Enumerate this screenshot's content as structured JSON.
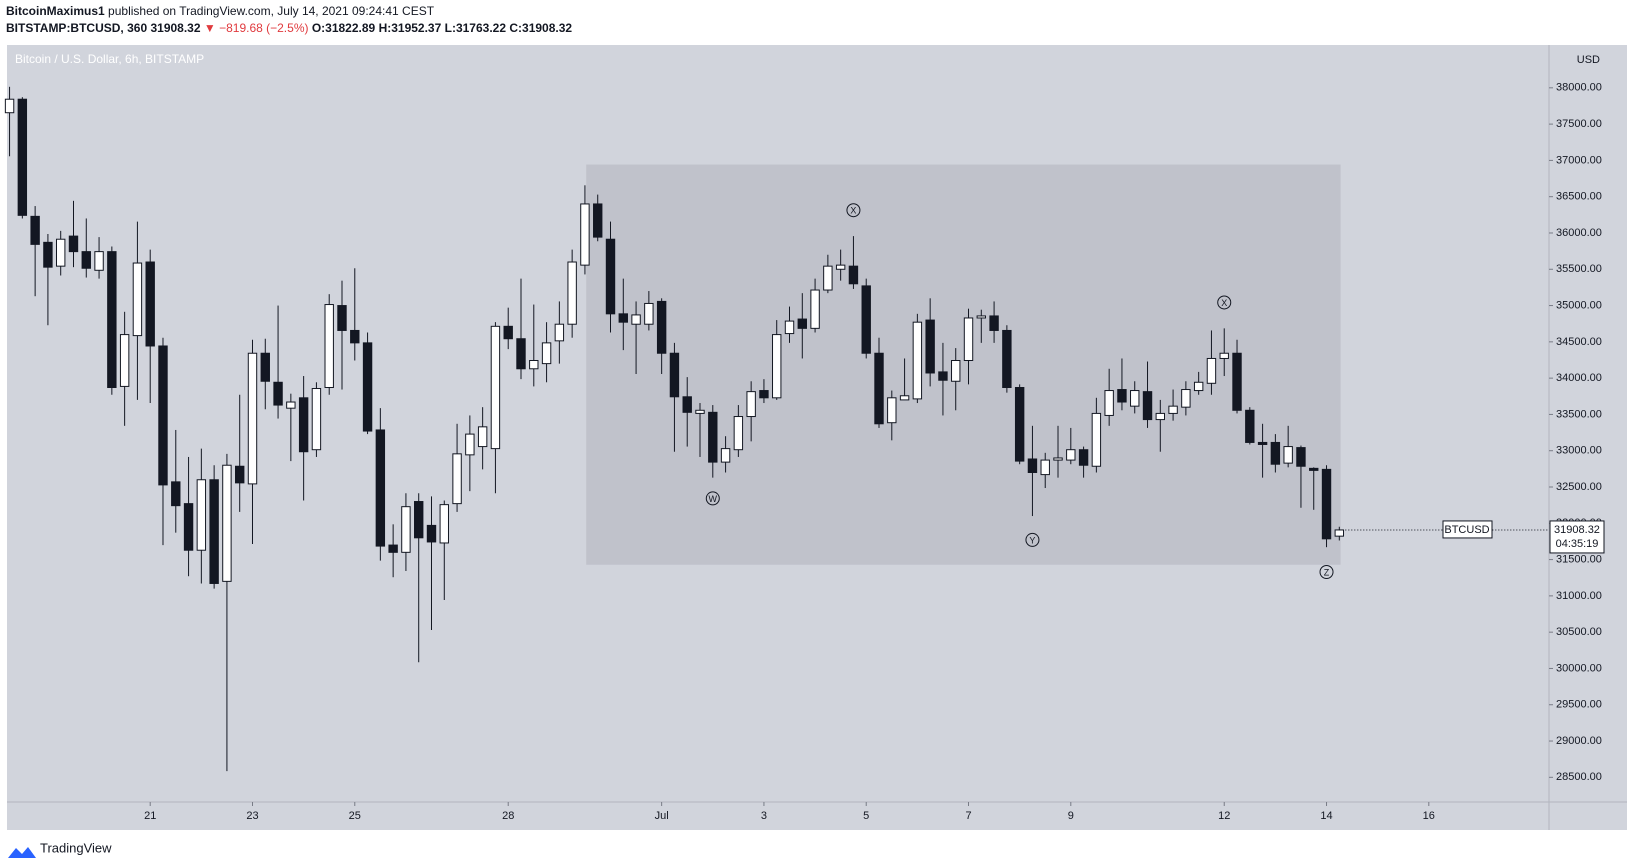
{
  "header": {
    "author": "BitcoinMaximus1",
    "published": "published on TradingView.com, July 14, 2021 09:24:41 CEST",
    "symbol": "BITSTAMP:BTCUSD, 360",
    "last": "31908.32",
    "change": "▼ −819.68 (−2.5%)",
    "o": "O:31822.89",
    "h": "H:31952.37",
    "l": "L:31763.22",
    "c": "C:31908.32"
  },
  "footer": {
    "brand": "TradingView"
  },
  "chart_data": {
    "type": "candlestick",
    "title": "Bitcoin / U.S. Dollar, 6h, BITSTAMP",
    "y_unit": "USD",
    "symbol": "BTCUSD",
    "countdown": "04:35:19",
    "up_color": "#ffffff",
    "down_color": "#131722",
    "open": [
      37657,
      37843,
      36229,
      35871,
      35543,
      35957,
      35743,
      35486,
      35743,
      33886,
      34586,
      35600,
      34443,
      32571,
      32271,
      31629,
      32600,
      31200,
      32786,
      32543,
      34343,
      33943,
      33586,
      33729,
      33014,
      33871,
      35000,
      34657,
      34486,
      33286,
      31700,
      31600,
      32300,
      31971,
      31729,
      32271,
      32943,
      33057,
      33029,
      34714,
      34543,
      34129,
      34200,
      34514,
      34743,
      35557,
      36400,
      35914,
      34886,
      34743,
      34743,
      35057,
      34343,
      33743,
      33514,
      33529,
      32843,
      33014,
      33471,
      33829,
      33729,
      34614,
      34814,
      34686,
      35214,
      35500,
      35543,
      35271,
      34343,
      33386,
      33700,
      33714,
      34800,
      34086,
      33957,
      34243,
      34829,
      34857,
      34657,
      33871,
      32886,
      32671,
      32871,
      32871,
      33014,
      32786,
      33486,
      33843,
      33614,
      33814,
      33429,
      33514,
      33600,
      33829,
      33929,
      34271,
      34343,
      33557,
      33114,
      33114,
      32829,
      33043,
      32757,
      32743,
      31822.89
    ],
    "high": [
      38014,
      37871,
      36371,
      35986,
      36029,
      36443,
      36200,
      35943,
      35814,
      34914,
      36157,
      35771,
      34557,
      33286,
      32914,
      33029,
      32800,
      32957,
      33771,
      34529,
      34543,
      35000,
      33786,
      34029,
      33943,
      35157,
      35343,
      35514,
      34629,
      33586,
      31986,
      32414,
      32414,
      32371,
      32314,
      33371,
      33486,
      33600,
      34771,
      34971,
      35371,
      35014,
      34771,
      35057,
      35771,
      36657,
      36529,
      36157,
      35371,
      35057,
      35200,
      35100,
      34486,
      34014,
      33657,
      33629,
      33200,
      33629,
      33957,
      33986,
      34800,
      34986,
      35171,
      35371,
      35700,
      35771,
      35957,
      35371,
      34557,
      33829,
      34271,
      34886,
      35100,
      34486,
      34414,
      34957,
      34943,
      35057,
      34729,
      33914,
      33343,
      32971,
      33343,
      33314,
      33057,
      33729,
      34129,
      34271,
      33957,
      34229,
      33700,
      33843,
      33957,
      34086,
      34657,
      34686,
      34529,
      33600,
      33371,
      33229,
      33343,
      33071,
      32771,
      32800,
      31952.37
    ],
    "low": [
      37057,
      36200,
      35129,
      34729,
      35414,
      35529,
      35386,
      35371,
      33771,
      33343,
      33700,
      33657,
      31700,
      31871,
      31271,
      31171,
      31100,
      28586,
      32157,
      31714,
      33571,
      33443,
      32857,
      32314,
      32914,
      33771,
      33843,
      34243,
      33229,
      31486,
      31257,
      31343,
      30086,
      30529,
      30943,
      32157,
      32443,
      32743,
      32414,
      34400,
      33986,
      33886,
      33943,
      34200,
      34557,
      35429,
      35886,
      34629,
      34386,
      34057,
      34657,
      34057,
      32986,
      33057,
      32914,
      32629,
      32700,
      32914,
      33129,
      33657,
      33700,
      34486,
      34271,
      34629,
      35171,
      35343,
      35229,
      34271,
      33314,
      33143,
      33700,
      33657,
      33886,
      33486,
      33557,
      33914,
      34486,
      34486,
      33800,
      32814,
      32100,
      32486,
      32629,
      32814,
      32629,
      32700,
      33343,
      33557,
      33514,
      33314,
      32986,
      33414,
      33486,
      33771,
      33771,
      34029,
      33514,
      33086,
      32629,
      32700,
      32771,
      32214,
      32186,
      31671,
      31763.22
    ],
    "close": [
      37843,
      36243,
      35843,
      35529,
      35914,
      35743,
      35514,
      35743,
      33871,
      34600,
      35586,
      34443,
      32529,
      32243,
      31629,
      32600,
      31171,
      32800,
      32557,
      34343,
      33957,
      33629,
      33671,
      32986,
      33857,
      35014,
      34657,
      34486,
      33271,
      31686,
      31600,
      32229,
      31800,
      31743,
      32257,
      32957,
      33229,
      33329,
      34714,
      34543,
      34129,
      34243,
      34486,
      34743,
      35600,
      36400,
      35943,
      34886,
      34771,
      34871,
      35029,
      34343,
      33743,
      33529,
      33557,
      32843,
      33029,
      33471,
      33814,
      33729,
      34600,
      34786,
      34686,
      35214,
      35543,
      35557,
      35300,
      34343,
      33371,
      33729,
      33757,
      34771,
      34071,
      33971,
      34243,
      34829,
      34857,
      34657,
      33871,
      32857,
      32700,
      32871,
      32900,
      33014,
      32800,
      33514,
      33829,
      33671,
      33829,
      33429,
      33514,
      33614,
      33843,
      33943,
      34271,
      34343,
      33557,
      33114,
      33086,
      32814,
      33057,
      32786,
      32729,
      31786,
      31908.32
    ],
    "xlim": [
      -0.2,
      120.4
    ],
    "xticks": [
      {
        "value": 11,
        "label": "21"
      },
      {
        "value": 19,
        "label": "23"
      },
      {
        "value": 27,
        "label": "25"
      },
      {
        "value": 39,
        "label": "28"
      },
      {
        "value": 51,
        "label": "Jul"
      },
      {
        "value": 59,
        "label": "3"
      },
      {
        "value": 67,
        "label": "5"
      },
      {
        "value": 75,
        "label": "7"
      },
      {
        "value": 83,
        "label": "9"
      },
      {
        "value": 95,
        "label": "12"
      },
      {
        "value": 103,
        "label": "14"
      },
      {
        "value": 111,
        "label": "16"
      }
    ],
    "ylim": [
      28160,
      38590
    ],
    "yticks": [
      {
        "value": 28500,
        "label": "28500.00"
      },
      {
        "value": 29000,
        "label": "29000.00"
      },
      {
        "value": 29500,
        "label": "29500.00"
      },
      {
        "value": 30000,
        "label": "30000.00"
      },
      {
        "value": 30500,
        "label": "30500.00"
      },
      {
        "value": 31000,
        "label": "31000.00"
      },
      {
        "value": 31500,
        "label": "31500.00"
      },
      {
        "value": 32000,
        "label": "32000.00"
      },
      {
        "value": 32500,
        "label": "32500.00"
      },
      {
        "value": 33000,
        "label": "33000.00"
      },
      {
        "value": 33500,
        "label": "33500.00"
      },
      {
        "value": 34000,
        "label": "34000.00"
      },
      {
        "value": 34500,
        "label": "34500.00"
      },
      {
        "value": 35000,
        "label": "35000.00"
      },
      {
        "value": 35500,
        "label": "35500.00"
      },
      {
        "value": 36000,
        "label": "36000.00"
      },
      {
        "value": 36500,
        "label": "36500.00"
      },
      {
        "value": 37000,
        "label": "37000.00"
      },
      {
        "value": 37500,
        "label": "37500.00"
      },
      {
        "value": 38000,
        "label": "38000.00"
      }
    ],
    "box": {
      "x": [
        45.1,
        104.1
      ],
      "y": [
        31429,
        36943
      ],
      "color": "#c0c2cb"
    },
    "annotations": [
      {
        "label": "W",
        "x": 55,
        "y": 32343
      },
      {
        "label": "X",
        "x": 66,
        "y": 36314
      },
      {
        "label": "Y",
        "x": 80,
        "y": 31771
      },
      {
        "label": "X",
        "x": 95,
        "y": 35043
      },
      {
        "label": "Z",
        "x": 103,
        "y": 31329
      }
    ]
  }
}
